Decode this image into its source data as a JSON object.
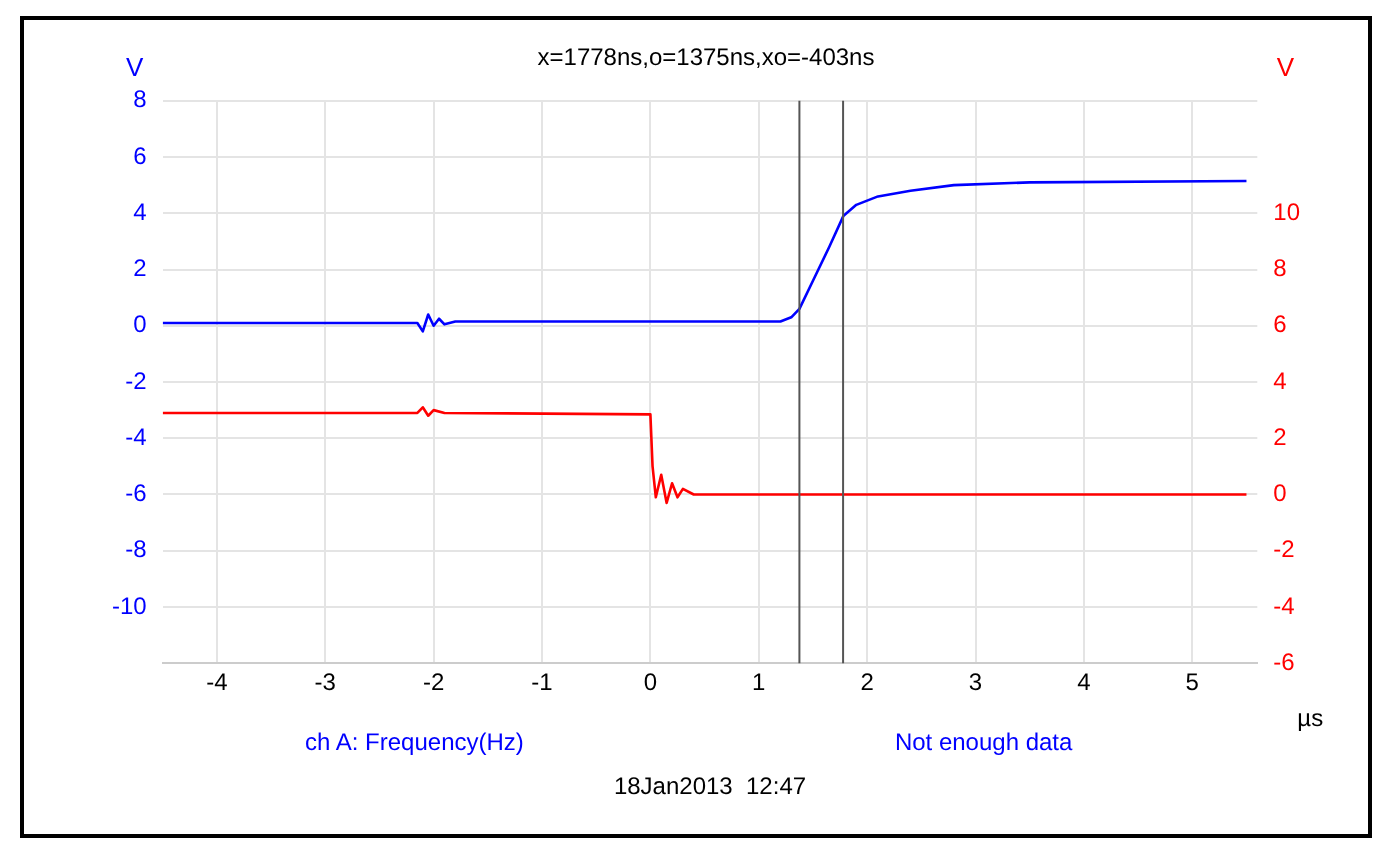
{
  "chart_data": {
    "type": "line",
    "title": "x=1778ns,o=1375ns,xo=-403ns",
    "xlabel": "µs",
    "ylabel": "V",
    "y2label": "V",
    "annotations": [
      "ch A: Frequency(Hz)",
      "Not enough data",
      "18Jan2013  12:47"
    ],
    "xlim": [
      -4.5,
      5.6
    ],
    "xticks": [
      -4,
      -3,
      -2,
      -1,
      0,
      1,
      2,
      3,
      4,
      5
    ],
    "ylim": [
      -12,
      8
    ],
    "yticks": [
      -10,
      -8,
      -6,
      -4,
      -2,
      0,
      2,
      4,
      6,
      8
    ],
    "y2lim": [
      -6,
      14
    ],
    "y2ticks": [
      -6,
      -4,
      -2,
      0,
      2,
      4,
      6,
      8,
      10
    ],
    "grid": true,
    "legend": false,
    "marker": "none",
    "ref_lines": [
      {
        "axis": "x",
        "value": 1.375,
        "color": "#555555"
      },
      {
        "axis": "x",
        "value": 1.778,
        "color": "#555555"
      }
    ],
    "series": [
      {
        "color": "#0000ff",
        "x": [
          -4.5,
          -2.15,
          -2.1,
          -2.05,
          -2.0,
          -1.95,
          -1.9,
          -1.8,
          1.2,
          1.3,
          1.375,
          1.5,
          1.65,
          1.78,
          1.9,
          2.1,
          2.4,
          2.8,
          3.5,
          5.5
        ],
        "values": [
          0.1,
          0.1,
          -0.2,
          0.4,
          0.0,
          0.25,
          0.05,
          0.15,
          0.15,
          0.3,
          0.6,
          1.6,
          2.8,
          3.9,
          4.3,
          4.6,
          4.8,
          5.0,
          5.1,
          5.15
        ]
      },
      {
        "color": "#ff0000",
        "axis": "y2",
        "x": [
          -4.5,
          -2.15,
          -2.1,
          -2.05,
          -2.0,
          -1.9,
          0.0,
          0.02,
          0.05,
          0.1,
          0.15,
          0.2,
          0.25,
          0.3,
          0.4,
          5.5
        ],
        "values": [
          2.9,
          2.9,
          3.1,
          2.8,
          3.0,
          2.9,
          2.85,
          1.0,
          -0.1,
          0.7,
          -0.3,
          0.4,
          -0.1,
          0.2,
          0.0,
          0.0
        ]
      }
    ]
  }
}
